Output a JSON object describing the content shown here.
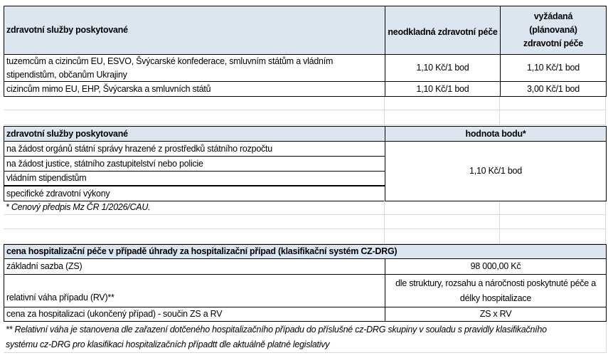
{
  "table1": {
    "header": [
      "zdravotní služby poskytované",
      "neodkladná zdravotní péče",
      "vyžádaná (plánovaná) zdravotní péče"
    ],
    "rows": [
      [
        "tuzemcům a cizincům EU, ESVO, Švýcarské konfederace, smluvním státům a vládním stipendistům, občanům Ukrajiny",
        "1,10 Kč/1 bod",
        "1,10 Kč/1 bod"
      ],
      [
        "cizincům mimo EU, EHP, Švýcarska a smluvních států",
        "1,10 Kč/1 bod",
        "3,00 Kč/1 bod"
      ]
    ]
  },
  "table2": {
    "header": [
      "zdravotní služby poskytované",
      "hodnota bodu*"
    ],
    "rows": [
      "na žádost orgánů státní správy hrazené z prostředků státního rozpočtu",
      "na žádost justice, státního zastupitelství nebo policie",
      "vládním stipendistům",
      "specifické zdravotní výkony"
    ],
    "value": "1,10 Kč/1 bod",
    "footnote": "* Cenový předpis Mz ČR 1/2026/CAU."
  },
  "table3": {
    "header": "cena hospitalizační péče v případě úhrady za hospitalizační případ (klasifikační systém CZ-DRG)",
    "rows": [
      [
        "základní sazba (ZS)",
        "98 000,00 Kč"
      ],
      [
        "relativní  váha případu (RV)**",
        "dle struktury, rozsahu a náročnosti poskytnuté péče a délky hospitalizace"
      ],
      [
        "cena za hospitalizaci (ukončený případ) - součin ZS a RV",
        "ZS x RV"
      ]
    ],
    "footnote": "** Relativní váha je stanovena dle zařazení dotčeného hospitalizačního případu do příslušné cz-DRG skupiny v souladu s pravidly klasifikačního systému cz-DRG pro klasifikaci hospitalizačních případtt dle aktuálně platné legislativy"
  }
}
